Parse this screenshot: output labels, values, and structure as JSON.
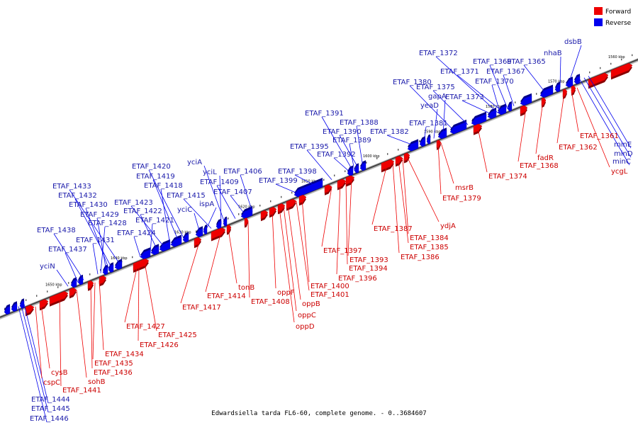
{
  "title": "Edwardsiella tarda FL6-60, complete genome. - 0..3684607",
  "legend": [
    {
      "label": "Forward",
      "color": "#ee0000"
    },
    {
      "label": "Reverse",
      "color": "#0000ee"
    }
  ],
  "colors": {
    "forward": "#ee0000",
    "reverse": "#0000ee",
    "forward_label": "#cc0000",
    "reverse_label": "#1a1aaa"
  },
  "axis_ticks": [
    "1560 kbp",
    "1570 kbp",
    "1580 kbp",
    "1590 kbp",
    "1600 kbp",
    "1610 kbp",
    "1620 kbp",
    "1630 kbp",
    "1640 kbp",
    "1650 kbp"
  ],
  "reverse_genes": [
    "dsbB",
    "nhaB",
    "ETAF_1365",
    "ETAF_1367",
    "ETAF_1369",
    "ETAF_1371",
    "ETAF_1372",
    "ETAF_1370",
    "ETAF_1373",
    "ETAF_1375",
    "ETAF_1380",
    "gapA",
    "yeaD",
    "ETAF_1381",
    "ETAF_1382",
    "ETAF_1388",
    "ETAF_1390",
    "ETAF_1389",
    "ETAF_1391",
    "ETAF_1395",
    "ETAF_1392",
    "ETAF_1398",
    "ETAF_1399",
    "ETAF_1406",
    "ETAF_1407",
    "ETAF_1409",
    "yciA",
    "yciL",
    "ETAF_1415",
    "ispA",
    "yciC",
    "ETAF_1420",
    "ETAF_1419",
    "ETAF_1418",
    "ETAF_1423",
    "ETAF_1422",
    "ETAF_1421",
    "ETAF_1424",
    "ETAF_1433",
    "ETAF_1432",
    "ETAF_1430",
    "ETAF_1429",
    "ETAF_1428",
    "ETAF_1431",
    "ETAF_1438",
    "ETAF_1437",
    "yciN",
    "minE",
    "minD",
    "minC",
    "ETAF_1444",
    "ETAF_1445",
    "ETAF_1446"
  ],
  "forward_genes": [
    "ETAF_1361",
    "ETAF_1362",
    "ycgL",
    "fadR",
    "ETAF_1368",
    "ETAF_1374",
    "msrB",
    "ETAF_1379",
    "ydjA",
    "ETAF_1384",
    "ETAF_1385",
    "ETAF_1386",
    "ETAF_1387",
    "ETAF_1393",
    "ETAF_1394",
    "ETAF_1396",
    "ETAF_1397",
    "ETAF_1400",
    "ETAF_1401",
    "oppB",
    "oppC",
    "oppD",
    "oppF",
    "ETAF_1408",
    "tonB",
    "ETAF_1414",
    "ETAF_1417",
    "ETAF_1425",
    "ETAF_1426",
    "ETAF_1427",
    "ETAF_1434",
    "ETAF_1435",
    "ETAF_1436",
    "sohB",
    "ETAF_1441",
    "cysB",
    "cspC"
  ]
}
